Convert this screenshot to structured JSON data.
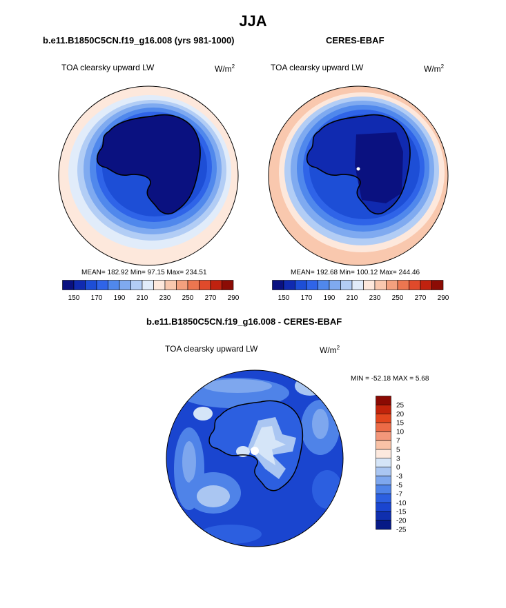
{
  "page": {
    "title": "JJA"
  },
  "panels": [
    {
      "title": "b.e11.B1850C5CN.f19_g16.008 (yrs 981-1000)",
      "subtitle": "TOA clearsky upward LW",
      "units_base": "W/m",
      "units_exp": "2",
      "stats": "MEAN= 182.92  Min=  97.15  Max= 234.51"
    },
    {
      "title": "CERES-EBAF",
      "subtitle": "TOA clearsky upward LW",
      "units_base": "W/m",
      "units_exp": "2",
      "stats": "MEAN= 192.68  Min= 100.12  Max= 244.46"
    },
    {
      "title": "b.e11.B1850C5CN.f19_g16.008 - CERES-EBAF",
      "subtitle": "TOA clearsky upward LW",
      "units_base": "W/m",
      "units_exp": "2",
      "stats": "MIN = -52.18 MAX =   5.68"
    }
  ],
  "colors": {
    "abs_scale": [
      "#0a1180",
      "#102ab0",
      "#1d4ed6",
      "#2f64e8",
      "#5088ec",
      "#7faaf0",
      "#b2cdf5",
      "#e1ecfa",
      "#fde8dc",
      "#f9c8ae",
      "#f3a07e",
      "#ec7650",
      "#e04a2b",
      "#c0220f",
      "#8c0c05"
    ],
    "diff_scale": [
      "#071a86",
      "#0f2fae",
      "#1a45cf",
      "#2c5fe0",
      "#4f83e8",
      "#7ea7ee",
      "#aac6f2",
      "#d5e5f8",
      "#fde9de",
      "#f9c2a6",
      "#f3977a",
      "#ec6b47",
      "#e2461e",
      "#c1230b",
      "#8b0a03"
    ]
  },
  "chart_data": [
    {
      "type": "heatmap",
      "title": "b.e11.B1850C5CN.f19_g16.008 (yrs 981-1000)",
      "variable": "TOA clearsky upward LW",
      "units": "W/m2",
      "projection": "south polar stereographic",
      "mean": 182.92,
      "min": 97.15,
      "max": 234.51,
      "contour_levels": [
        140,
        150,
        160,
        170,
        180,
        190,
        200,
        210,
        220,
        230,
        240,
        250,
        260,
        270,
        280,
        290
      ],
      "colorbar_labels": [
        "150",
        "170",
        "190",
        "210",
        "230",
        "250",
        "270",
        "290"
      ]
    },
    {
      "type": "heatmap",
      "title": "CERES-EBAF",
      "variable": "TOA clearsky upward LW",
      "units": "W/m2",
      "projection": "south polar stereographic",
      "mean": 192.68,
      "min": 100.12,
      "max": 244.46,
      "contour_levels": [
        140,
        150,
        160,
        170,
        180,
        190,
        200,
        210,
        220,
        230,
        240,
        250,
        260,
        270,
        280,
        290
      ],
      "colorbar_labels": [
        "150",
        "170",
        "190",
        "210",
        "230",
        "250",
        "270",
        "290"
      ]
    },
    {
      "type": "heatmap",
      "title": "b.e11.B1850C5CN.f19_g16.008 - CERES-EBAF",
      "variable": "TOA clearsky upward LW",
      "units": "W/m2",
      "projection": "south polar stereographic",
      "min": -52.18,
      "max": 5.68,
      "contour_levels": [
        -25,
        -20,
        -15,
        -10,
        -7,
        -5,
        -3,
        0,
        3,
        5,
        7,
        10,
        15,
        20,
        25
      ],
      "colorbar_labels": [
        "25",
        "20",
        "15",
        "10",
        "7",
        "5",
        "3",
        "0",
        "-3",
        "-5",
        "-7",
        "-10",
        "-15",
        "-20",
        "-25"
      ]
    }
  ]
}
